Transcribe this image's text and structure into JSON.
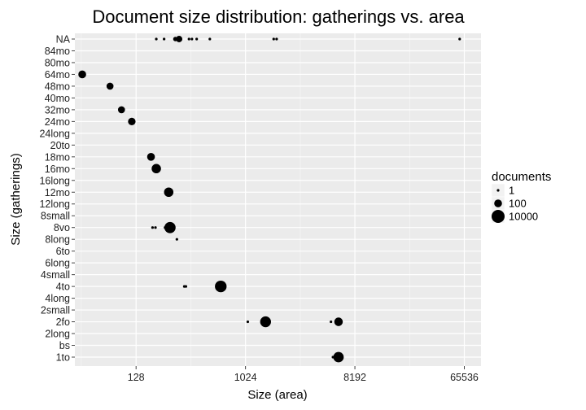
{
  "chart_data": {
    "type": "scatter",
    "title": "Document size distribution: gatherings vs. area",
    "xlabel": "Size (area)",
    "ylabel": "Size (gatherings)",
    "x_scale": "log2",
    "xlim": [
      40,
      90000
    ],
    "x_ticks": [
      128,
      1024,
      8192,
      65536
    ],
    "x_tick_labels": [
      "128",
      "1024",
      "8192",
      "65536"
    ],
    "y_categories": [
      "1to",
      "bs",
      "2long",
      "2fo",
      "2small",
      "4long",
      "4to",
      "4small",
      "6long",
      "6to",
      "8long",
      "8vo",
      "8small",
      "12long",
      "12mo",
      "16long",
      "16mo",
      "18mo",
      "20to",
      "24long",
      "24mo",
      "32mo",
      "40mo",
      "48mo",
      "64mo",
      "80mo",
      "84mo",
      "NA"
    ],
    "grid": true,
    "legend": {
      "title": "documents",
      "position": "right",
      "entries": [
        {
          "label": "1",
          "value": 1
        },
        {
          "label": "100",
          "value": 100
        },
        {
          "label": "10000",
          "value": 10000
        }
      ]
    },
    "points": [
      {
        "x": 46,
        "y": "64mo",
        "documents": 100
      },
      {
        "x": 78,
        "y": "48mo",
        "documents": 50
      },
      {
        "x": 97,
        "y": "32mo",
        "documents": 50
      },
      {
        "x": 118,
        "y": "24mo",
        "documents": 80
      },
      {
        "x": 170,
        "y": "18mo",
        "documents": 100
      },
      {
        "x": 188,
        "y": "16mo",
        "documents": 400
      },
      {
        "x": 238,
        "y": "12mo",
        "documents": 400
      },
      {
        "x": 188,
        "y": "NA",
        "documents": 1
      },
      {
        "x": 218,
        "y": "NA",
        "documents": 1
      },
      {
        "x": 270,
        "y": "NA",
        "documents": 5
      },
      {
        "x": 290,
        "y": "NA",
        "documents": 30
      },
      {
        "x": 350,
        "y": "NA",
        "documents": 1
      },
      {
        "x": 370,
        "y": "NA",
        "documents": 1
      },
      {
        "x": 405,
        "y": "NA",
        "documents": 1
      },
      {
        "x": 520,
        "y": "NA",
        "documents": 1
      },
      {
        "x": 1750,
        "y": "NA",
        "documents": 1
      },
      {
        "x": 1850,
        "y": "NA",
        "documents": 1
      },
      {
        "x": 60000,
        "y": "NA",
        "documents": 1
      },
      {
        "x": 175,
        "y": "8vo",
        "documents": 1
      },
      {
        "x": 185,
        "y": "8vo",
        "documents": 1
      },
      {
        "x": 222,
        "y": "8vo",
        "documents": 1
      },
      {
        "x": 244,
        "y": "8vo",
        "documents": 2000
      },
      {
        "x": 278,
        "y": "8long",
        "documents": 1
      },
      {
        "x": 320,
        "y": "4to",
        "documents": 1
      },
      {
        "x": 330,
        "y": "4to",
        "documents": 1
      },
      {
        "x": 640,
        "y": "4to",
        "documents": 3000
      },
      {
        "x": 1070,
        "y": "2fo",
        "documents": 1
      },
      {
        "x": 1500,
        "y": "2fo",
        "documents": 1500
      },
      {
        "x": 5200,
        "y": "2fo",
        "documents": 1
      },
      {
        "x": 6000,
        "y": "2fo",
        "documents": 200
      },
      {
        "x": 5400,
        "y": "1to",
        "documents": 1
      },
      {
        "x": 6000,
        "y": "1to",
        "documents": 1000
      }
    ]
  }
}
